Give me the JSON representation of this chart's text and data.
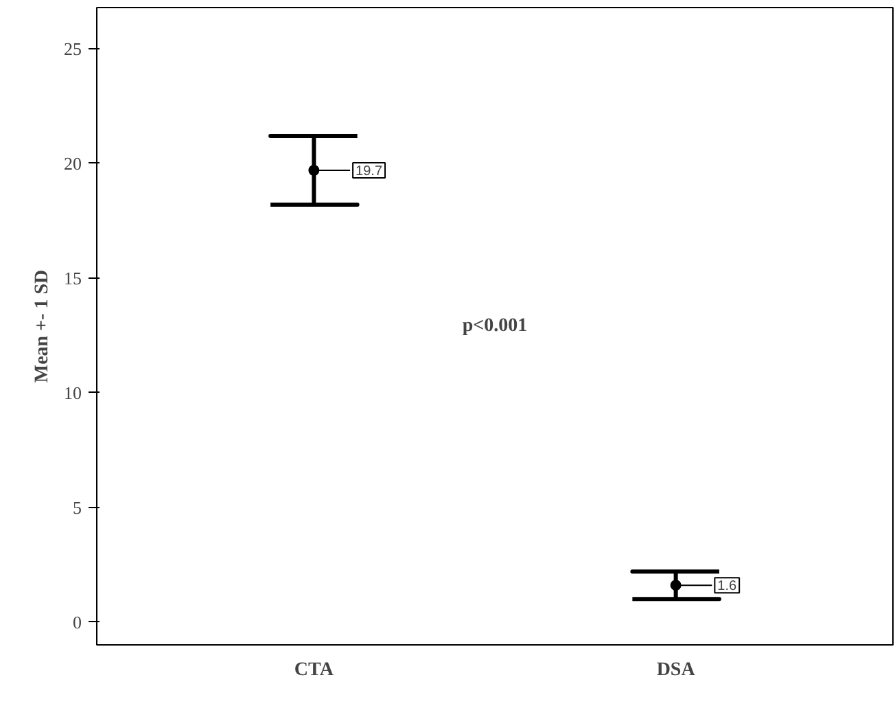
{
  "chart_data": {
    "type": "scatter",
    "ylabel": "Mean +- 1 SD",
    "categories": [
      "CTA",
      "DSA"
    ],
    "values": [
      19.7,
      1.6
    ],
    "errors": [
      1.5,
      0.6
    ],
    "color": "#000000",
    "marker": "circle",
    "data_labels": true,
    "annotations": [
      "p<0.001"
    ],
    "ylim": [
      -1,
      26.8
    ],
    "yticks": [
      0,
      5,
      10,
      15,
      20,
      25
    ],
    "grid": false
  }
}
